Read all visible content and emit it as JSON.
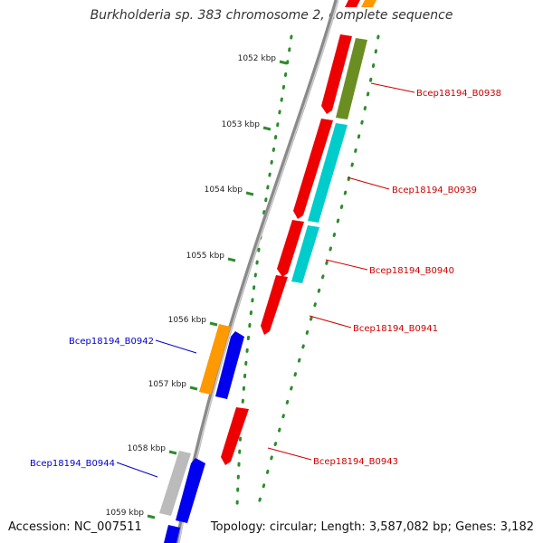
{
  "title": "Burkholderia sp. 383 chromosome 2, complete sequence",
  "footer": {
    "accession_label": "Accession:",
    "accession": "NC_007511",
    "topology_text": "Topology: circular; Length: 3,587,082 bp; Genes: 3,182"
  },
  "colors": {
    "backbone": "#8a8a8a",
    "ticks": "#2e8b2e",
    "label_forward": "#cc0000",
    "label_reverse": "#0000cc",
    "red": "#ee0000",
    "olive": "#6b8e23",
    "cyan": "#00cccc",
    "orange": "#ff9900",
    "blue": "#0000ee",
    "gray": "#bbbbbb"
  },
  "scale_labels": [
    "1052 kbp",
    "1053 kbp",
    "1054 kbp",
    "1055 kbp",
    "1056 kbp",
    "1057 kbp",
    "1058 kbp",
    "1059 kbp"
  ],
  "gene_labels": [
    {
      "name": "Bcep18194_B0938",
      "strand": "forward"
    },
    {
      "name": "Bcep18194_B0939",
      "strand": "forward"
    },
    {
      "name": "Bcep18194_B0940",
      "strand": "forward"
    },
    {
      "name": "Bcep18194_B0941",
      "strand": "forward"
    },
    {
      "name": "Bcep18194_B0942",
      "strand": "reverse"
    },
    {
      "name": "Bcep18194_B0943",
      "strand": "forward"
    },
    {
      "name": "Bcep18194_B0944",
      "strand": "reverse"
    }
  ]
}
